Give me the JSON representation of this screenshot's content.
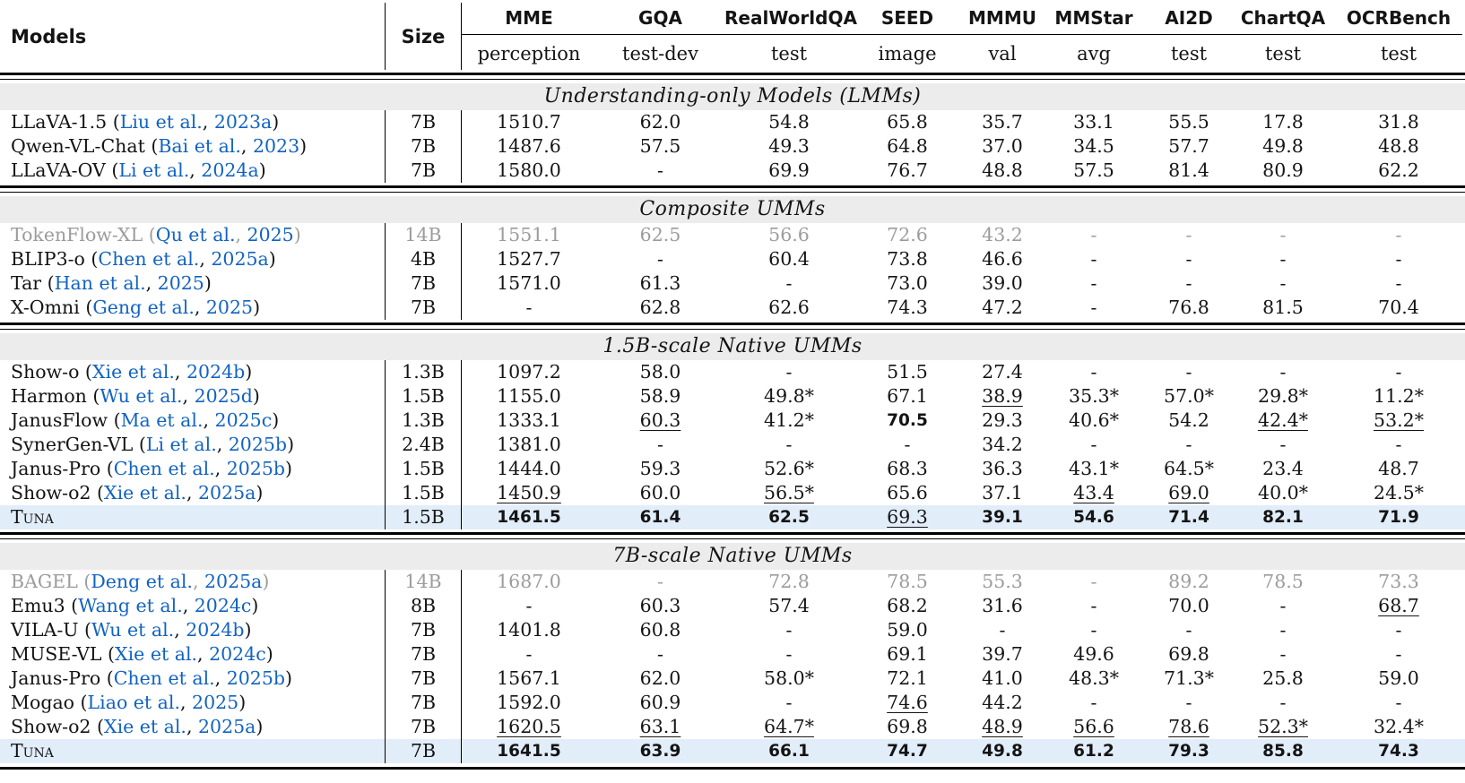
{
  "colors": {
    "citation_blue": "#1263c2",
    "section_band_gray": "#ececec",
    "highlight_row_blue": "#e2edfa",
    "muted_text_gray": "#9c9c9c"
  },
  "punctuation": {
    "cite_open": " (",
    "cite_sep": ", ",
    "cite_close": ")"
  },
  "columns": [
    {
      "label": "Models",
      "sub": ""
    },
    {
      "label": "Size",
      "sub": ""
    },
    {
      "label": "MME",
      "sub": "perception"
    },
    {
      "label": "GQA",
      "sub": "test-dev"
    },
    {
      "label": "RealWorldQA",
      "sub": "test"
    },
    {
      "label": "SEED",
      "sub": "image"
    },
    {
      "label": "MMMU",
      "sub": "val"
    },
    {
      "label": "MMStar",
      "sub": "avg"
    },
    {
      "label": "AI2D",
      "sub": "test"
    },
    {
      "label": "ChartQA",
      "sub": "test"
    },
    {
      "label": "OCRBench",
      "sub": "test"
    }
  ],
  "sections": [
    {
      "title": "Understanding-only Models (LMMs)",
      "rows": [
        {
          "model": "LLaVA-1.5",
          "cite_a": "Liu et al.",
          "cite_y": "2023a",
          "size": "7B",
          "values": [
            {
              "v": "1510.7"
            },
            {
              "v": "62.0"
            },
            {
              "v": "54.8"
            },
            {
              "v": "65.8"
            },
            {
              "v": "35.7"
            },
            {
              "v": "33.1"
            },
            {
              "v": "55.5"
            },
            {
              "v": "17.8"
            },
            {
              "v": "31.8"
            }
          ]
        },
        {
          "model": "Qwen-VL-Chat",
          "cite_a": "Bai et al.",
          "cite_y": "2023",
          "size": "7B",
          "values": [
            {
              "v": "1487.6"
            },
            {
              "v": "57.5"
            },
            {
              "v": "49.3"
            },
            {
              "v": "64.8"
            },
            {
              "v": "37.0"
            },
            {
              "v": "34.5"
            },
            {
              "v": "57.7"
            },
            {
              "v": "49.8"
            },
            {
              "v": "48.8"
            }
          ]
        },
        {
          "model": "LLaVA-OV",
          "cite_a": "Li et al.",
          "cite_y": "2024a",
          "size": "7B",
          "values": [
            {
              "v": "1580.0"
            },
            {
              "v": "-"
            },
            {
              "v": "69.9"
            },
            {
              "v": "76.7"
            },
            {
              "v": "48.8"
            },
            {
              "v": "57.5"
            },
            {
              "v": "81.4"
            },
            {
              "v": "80.9"
            },
            {
              "v": "62.2"
            }
          ]
        }
      ]
    },
    {
      "title": "Composite UMMs",
      "rows": [
        {
          "model": "TokenFlow-XL",
          "cite_a": "Qu et al.",
          "cite_y": "2025",
          "size": "14B",
          "muted": true,
          "values": [
            {
              "v": "1551.1"
            },
            {
              "v": "62.5"
            },
            {
              "v": "56.6"
            },
            {
              "v": "72.6"
            },
            {
              "v": "43.2"
            },
            {
              "v": "-"
            },
            {
              "v": "-"
            },
            {
              "v": "-"
            },
            {
              "v": "-"
            }
          ]
        },
        {
          "model": "BLIP3-o",
          "cite_a": "Chen et al.",
          "cite_y": "2025a",
          "size": "4B",
          "values": [
            {
              "v": "1527.7"
            },
            {
              "v": "-"
            },
            {
              "v": "60.4"
            },
            {
              "v": "73.8"
            },
            {
              "v": "46.6"
            },
            {
              "v": "-"
            },
            {
              "v": "-"
            },
            {
              "v": "-"
            },
            {
              "v": "-"
            }
          ]
        },
        {
          "model": "Tar",
          "cite_a": "Han et al.",
          "cite_y": "2025",
          "size": "7B",
          "values": [
            {
              "v": "1571.0"
            },
            {
              "v": "61.3"
            },
            {
              "v": "-"
            },
            {
              "v": "73.0"
            },
            {
              "v": "39.0"
            },
            {
              "v": "-"
            },
            {
              "v": "-"
            },
            {
              "v": "-"
            },
            {
              "v": "-"
            }
          ]
        },
        {
          "model": "X-Omni",
          "cite_a": "Geng et al.",
          "cite_y": "2025",
          "size": "7B",
          "values": [
            {
              "v": "-"
            },
            {
              "v": "62.8"
            },
            {
              "v": "62.6"
            },
            {
              "v": "74.3"
            },
            {
              "v": "47.2"
            },
            {
              "v": "-"
            },
            {
              "v": "76.8"
            },
            {
              "v": "81.5"
            },
            {
              "v": "70.4"
            }
          ]
        }
      ]
    },
    {
      "title": "1.5B-scale Native UMMs",
      "rows": [
        {
          "model": "Show-o",
          "cite_a": "Xie et al.",
          "cite_y": "2024b",
          "size": "1.3B",
          "values": [
            {
              "v": "1097.2"
            },
            {
              "v": "58.0"
            },
            {
              "v": "-"
            },
            {
              "v": "51.5"
            },
            {
              "v": "27.4"
            },
            {
              "v": "-"
            },
            {
              "v": "-"
            },
            {
              "v": "-"
            },
            {
              "v": "-"
            }
          ]
        },
        {
          "model": "Harmon",
          "cite_a": "Wu et al.",
          "cite_y": "2025d",
          "size": "1.5B",
          "values": [
            {
              "v": "1155.0"
            },
            {
              "v": "58.9"
            },
            {
              "v": "49.8*"
            },
            {
              "v": "67.1"
            },
            {
              "v": "38.9",
              "s": "u"
            },
            {
              "v": "35.3*"
            },
            {
              "v": "57.0*"
            },
            {
              "v": "29.8*"
            },
            {
              "v": "11.2*"
            }
          ]
        },
        {
          "model": "JanusFlow",
          "cite_a": "Ma et al.",
          "cite_y": "2025c",
          "size": "1.3B",
          "values": [
            {
              "v": "1333.1"
            },
            {
              "v": "60.3",
              "s": "u"
            },
            {
              "v": "41.2*"
            },
            {
              "v": "70.5",
              "s": "b"
            },
            {
              "v": "29.3"
            },
            {
              "v": "40.6*"
            },
            {
              "v": "54.2"
            },
            {
              "v": "42.4*",
              "s": "u"
            },
            {
              "v": "53.2*",
              "s": "u"
            }
          ]
        },
        {
          "model": "SynerGen-VL",
          "cite_a": "Li et al.",
          "cite_y": "2025b",
          "size": "2.4B",
          "values": [
            {
              "v": "1381.0"
            },
            {
              "v": "-"
            },
            {
              "v": "-"
            },
            {
              "v": "-"
            },
            {
              "v": "34.2"
            },
            {
              "v": "-"
            },
            {
              "v": "-"
            },
            {
              "v": "-"
            },
            {
              "v": "-"
            }
          ]
        },
        {
          "model": "Janus-Pro",
          "cite_a": "Chen et al.",
          "cite_y": "2025b",
          "size": "1.5B",
          "values": [
            {
              "v": "1444.0"
            },
            {
              "v": "59.3"
            },
            {
              "v": "52.6*"
            },
            {
              "v": "68.3"
            },
            {
              "v": "36.3"
            },
            {
              "v": "43.1*"
            },
            {
              "v": "64.5*"
            },
            {
              "v": "23.4"
            },
            {
              "v": "48.7"
            }
          ]
        },
        {
          "model": "Show-o2",
          "cite_a": "Xie et al.",
          "cite_y": "2025a",
          "size": "1.5B",
          "values": [
            {
              "v": "1450.9",
              "s": "u"
            },
            {
              "v": "60.0"
            },
            {
              "v": "56.5*",
              "s": "u"
            },
            {
              "v": "65.6"
            },
            {
              "v": "37.1"
            },
            {
              "v": "43.4",
              "s": "u"
            },
            {
              "v": "69.0",
              "s": "u"
            },
            {
              "v": "40.0*"
            },
            {
              "v": "24.5*"
            }
          ]
        },
        {
          "model": "Tuna",
          "size": "1.5B",
          "highlight": true,
          "smallcaps": true,
          "values": [
            {
              "v": "1461.5",
              "s": "b"
            },
            {
              "v": "61.4",
              "s": "b"
            },
            {
              "v": "62.5",
              "s": "b"
            },
            {
              "v": "69.3",
              "s": "u"
            },
            {
              "v": "39.1",
              "s": "b"
            },
            {
              "v": "54.6",
              "s": "b"
            },
            {
              "v": "71.4",
              "s": "b"
            },
            {
              "v": "82.1",
              "s": "b"
            },
            {
              "v": "71.9",
              "s": "b"
            }
          ]
        }
      ]
    },
    {
      "title": "7B-scale Native UMMs",
      "rows": [
        {
          "model": "BAGEL",
          "cite_a": "Deng et al.",
          "cite_y": "2025a",
          "size": "14B",
          "muted": true,
          "values": [
            {
              "v": "1687.0"
            },
            {
              "v": "-"
            },
            {
              "v": "72.8"
            },
            {
              "v": "78.5"
            },
            {
              "v": "55.3"
            },
            {
              "v": "-"
            },
            {
              "v": "89.2"
            },
            {
              "v": "78.5"
            },
            {
              "v": "73.3"
            }
          ]
        },
        {
          "model": "Emu3",
          "cite_a": "Wang et al.",
          "cite_y": "2024c",
          "size": "8B",
          "values": [
            {
              "v": "-"
            },
            {
              "v": "60.3"
            },
            {
              "v": "57.4"
            },
            {
              "v": "68.2"
            },
            {
              "v": "31.6"
            },
            {
              "v": "-"
            },
            {
              "v": "70.0"
            },
            {
              "v": "-"
            },
            {
              "v": "68.7",
              "s": "u"
            }
          ]
        },
        {
          "model": "VILA-U",
          "cite_a": "Wu et al.",
          "cite_y": "2024b",
          "size": "7B",
          "values": [
            {
              "v": "1401.8"
            },
            {
              "v": "60.8"
            },
            {
              "v": "-"
            },
            {
              "v": "59.0"
            },
            {
              "v": "-"
            },
            {
              "v": "-"
            },
            {
              "v": "-"
            },
            {
              "v": "-"
            },
            {
              "v": "-"
            }
          ]
        },
        {
          "model": "MUSE-VL",
          "cite_a": "Xie et al.",
          "cite_y": "2024c",
          "size": "7B",
          "values": [
            {
              "v": "-"
            },
            {
              "v": "-"
            },
            {
              "v": "-"
            },
            {
              "v": "69.1"
            },
            {
              "v": "39.7"
            },
            {
              "v": "49.6"
            },
            {
              "v": "69.8"
            },
            {
              "v": "-"
            },
            {
              "v": "-"
            }
          ]
        },
        {
          "model": "Janus-Pro",
          "cite_a": "Chen et al.",
          "cite_y": "2025b",
          "size": "7B",
          "values": [
            {
              "v": "1567.1"
            },
            {
              "v": "62.0"
            },
            {
              "v": "58.0*"
            },
            {
              "v": "72.1"
            },
            {
              "v": "41.0"
            },
            {
              "v": "48.3*"
            },
            {
              "v": "71.3*"
            },
            {
              "v": "25.8"
            },
            {
              "v": "59.0"
            }
          ]
        },
        {
          "model": "Mogao",
          "cite_a": "Liao et al.",
          "cite_y": "2025",
          "size": "7B",
          "values": [
            {
              "v": "1592.0"
            },
            {
              "v": "60.9"
            },
            {
              "v": "-"
            },
            {
              "v": "74.6",
              "s": "u"
            },
            {
              "v": "44.2"
            },
            {
              "v": "-"
            },
            {
              "v": "-"
            },
            {
              "v": "-"
            },
            {
              "v": "-"
            }
          ]
        },
        {
          "model": "Show-o2",
          "cite_a": "Xie et al.",
          "cite_y": "2025a",
          "size": "7B",
          "values": [
            {
              "v": "1620.5",
              "s": "u"
            },
            {
              "v": "63.1",
              "s": "u"
            },
            {
              "v": "64.7*",
              "s": "u"
            },
            {
              "v": "69.8"
            },
            {
              "v": "48.9",
              "s": "u"
            },
            {
              "v": "56.6",
              "s": "u"
            },
            {
              "v": "78.6",
              "s": "u"
            },
            {
              "v": "52.3*",
              "s": "u"
            },
            {
              "v": "32.4*"
            }
          ]
        },
        {
          "model": "Tuna",
          "size": "7B",
          "highlight": true,
          "smallcaps": true,
          "values": [
            {
              "v": "1641.5",
              "s": "b"
            },
            {
              "v": "63.9",
              "s": "b"
            },
            {
              "v": "66.1",
              "s": "b"
            },
            {
              "v": "74.7",
              "s": "b"
            },
            {
              "v": "49.8",
              "s": "b"
            },
            {
              "v": "61.2",
              "s": "b"
            },
            {
              "v": "79.3",
              "s": "b"
            },
            {
              "v": "85.8",
              "s": "b"
            },
            {
              "v": "74.3",
              "s": "b"
            }
          ]
        }
      ]
    }
  ]
}
